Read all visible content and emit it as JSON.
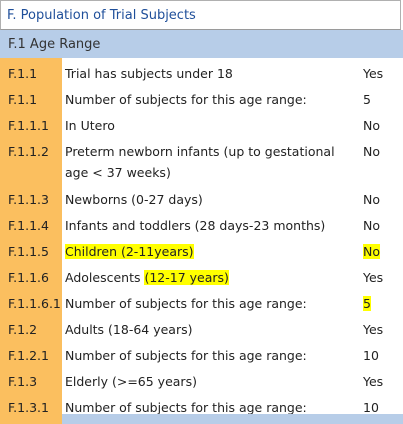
{
  "title": "F. Population of Trial Subjects",
  "section": "F.1 Age Range",
  "rows": [
    {
      "code": "F.1.1",
      "label": "Trial has subjects under 18",
      "value": "Yes"
    },
    {
      "code": "F.1.1",
      "label": "Number of subjects for this age range:",
      "value": "5"
    },
    {
      "code": "F.1.1.1",
      "label": "In Utero",
      "value": "No"
    },
    {
      "code": "F.1.1.2",
      "label": "Preterm newborn infants (up to gestational age < 37 weeks)",
      "value": "No"
    },
    {
      "code": "F.1.1.3",
      "label": "Newborns (0-27 days)",
      "value": "No"
    },
    {
      "code": "F.1.1.4",
      "label": "Infants and toddlers (28 days-23 months)",
      "value": "No"
    },
    {
      "code": "F.1.1.5",
      "label": "Children (2-11years)",
      "value": "No"
    },
    {
      "code": "F.1.1.6",
      "label_prefix": "Adolescents ",
      "label_highlight": "(12-17 years)",
      "value": "Yes"
    },
    {
      "code": "F.1.1.6.1",
      "label": "Number of subjects for this age range:",
      "value": "5"
    },
    {
      "code": "F.1.2",
      "label": "Adults (18-64 years)",
      "value": "Yes"
    },
    {
      "code": "F.1.2.1",
      "label": "Number of subjects for this age range:",
      "value": "10"
    },
    {
      "code": "F.1.3",
      "label": "Elderly (>=65 years)",
      "value": "Yes"
    },
    {
      "code": "F.1.3.1",
      "label": "Number of subjects for this age range:",
      "value": "10"
    }
  ],
  "colors": {
    "title_text": "#1f4f9a",
    "section_bg": "#b7cde8",
    "code_bg": "#fbbf5f",
    "highlight": "#ffff00"
  }
}
